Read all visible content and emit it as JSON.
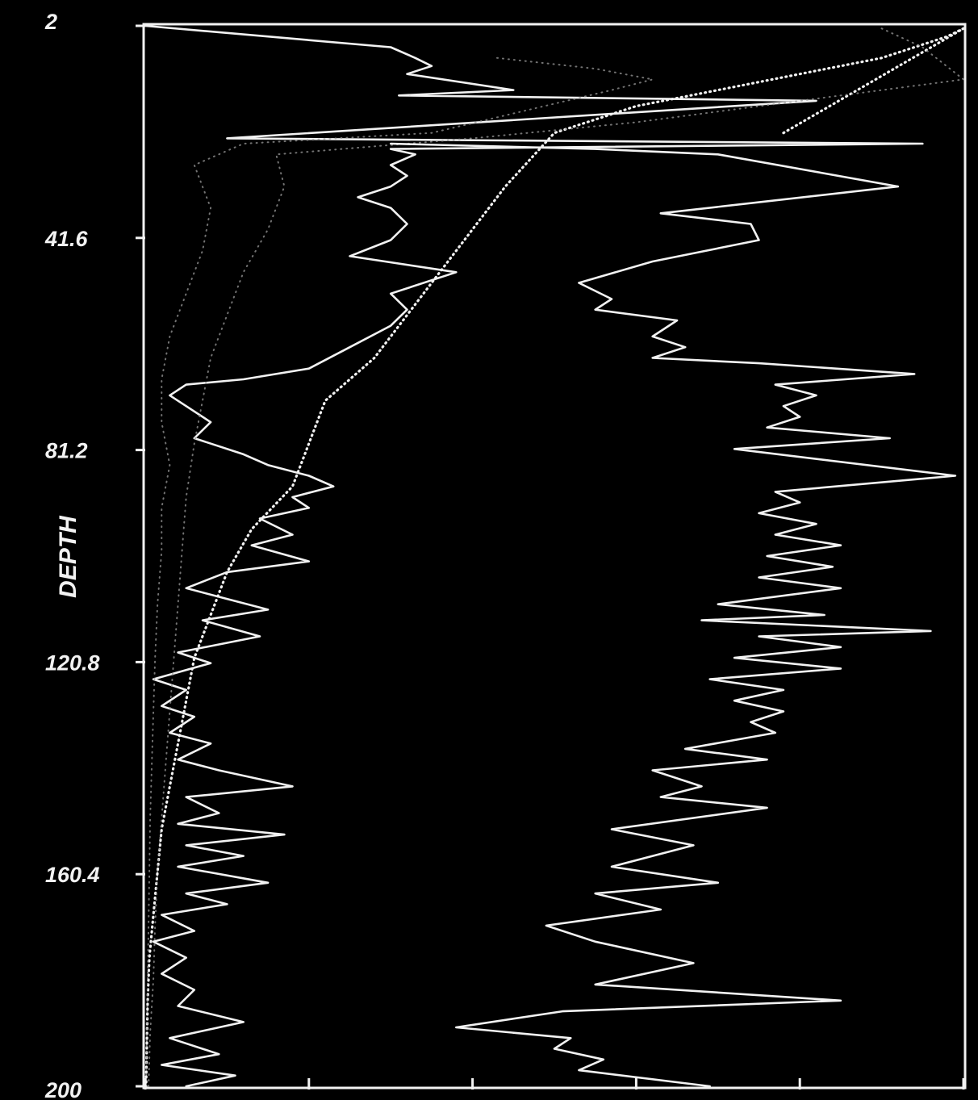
{
  "chart_data": {
    "type": "line",
    "title": "",
    "xlabel": "",
    "ylabel": "DEPTH",
    "ylim": [
      2,
      200
    ],
    "y_inverted": true,
    "xlim": [
      0,
      1
    ],
    "y_ticks": [
      {
        "value": 2,
        "label": "2"
      },
      {
        "value": 41.6,
        "label": "41.6"
      },
      {
        "value": 81.2,
        "label": "81.2"
      },
      {
        "value": 120.8,
        "label": "120.8"
      },
      {
        "value": 160.4,
        "label": "160.4"
      },
      {
        "value": 200,
        "label": "200"
      }
    ],
    "x_tick_values": [
      0,
      0.2,
      0.4,
      0.6,
      0.8,
      1.0
    ],
    "grid": false,
    "legend": "none",
    "colors": {
      "background": "#000000",
      "foreground": "#f2f2f2",
      "faint": "#9a9a9a"
    },
    "series": [
      {
        "style": "solid",
        "points": [
          [
            0.0,
            2
          ],
          [
            0.3,
            6
          ],
          [
            0.33,
            8
          ],
          [
            0.35,
            9.5
          ],
          [
            0.32,
            11
          ],
          [
            0.45,
            14
          ],
          [
            0.31,
            15
          ],
          [
            0.82,
            16
          ],
          [
            0.1,
            23
          ],
          [
            0.95,
            24
          ],
          [
            0.3,
            25
          ],
          [
            0.33,
            26
          ],
          [
            0.3,
            28
          ],
          [
            0.32,
            30
          ],
          [
            0.3,
            32
          ],
          [
            0.26,
            34
          ],
          [
            0.3,
            36
          ],
          [
            0.32,
            39
          ],
          [
            0.3,
            42
          ],
          [
            0.25,
            45
          ],
          [
            0.38,
            48
          ],
          [
            0.3,
            52
          ],
          [
            0.32,
            55
          ],
          [
            0.3,
            58
          ],
          [
            0.25,
            62
          ],
          [
            0.2,
            66
          ],
          [
            0.12,
            68
          ],
          [
            0.05,
            69
          ],
          [
            0.03,
            71
          ],
          [
            0.05,
            73
          ],
          [
            0.08,
            76
          ],
          [
            0.06,
            79
          ],
          [
            0.12,
            82
          ],
          [
            0.15,
            84
          ],
          [
            0.2,
            86
          ],
          [
            0.23,
            88
          ],
          [
            0.18,
            90
          ],
          [
            0.2,
            92
          ],
          [
            0.14,
            94
          ],
          [
            0.18,
            97
          ],
          [
            0.13,
            99
          ],
          [
            0.2,
            102
          ],
          [
            0.1,
            104
          ],
          [
            0.05,
            107
          ],
          [
            0.1,
            109
          ],
          [
            0.15,
            111
          ],
          [
            0.07,
            113
          ],
          [
            0.14,
            116
          ],
          [
            0.04,
            119
          ],
          [
            0.08,
            121
          ],
          [
            0.01,
            124
          ],
          [
            0.05,
            126
          ],
          [
            0.02,
            129
          ],
          [
            0.06,
            131
          ],
          [
            0.03,
            134
          ],
          [
            0.08,
            136
          ],
          [
            0.04,
            139
          ],
          [
            0.09,
            141
          ],
          [
            0.18,
            144
          ],
          [
            0.05,
            146
          ],
          [
            0.09,
            149
          ],
          [
            0.04,
            151
          ],
          [
            0.17,
            153
          ],
          [
            0.05,
            155
          ],
          [
            0.12,
            157
          ],
          [
            0.04,
            159
          ],
          [
            0.15,
            162
          ],
          [
            0.05,
            164
          ],
          [
            0.1,
            166
          ],
          [
            0.02,
            168
          ],
          [
            0.06,
            171
          ],
          [
            0.01,
            173
          ],
          [
            0.05,
            176
          ],
          [
            0.02,
            179
          ],
          [
            0.06,
            182
          ],
          [
            0.04,
            185
          ],
          [
            0.12,
            188
          ],
          [
            0.03,
            191
          ],
          [
            0.09,
            194
          ],
          [
            0.02,
            196
          ],
          [
            0.11,
            198
          ],
          [
            0.05,
            200
          ]
        ]
      },
      {
        "style": "dotted-bright",
        "points": [
          [
            0.78,
            22
          ],
          [
            1.0,
            2.5
          ],
          [
            0.98,
            4
          ],
          [
            0.9,
            8
          ],
          [
            0.7,
            14
          ],
          [
            0.6,
            17
          ],
          [
            0.5,
            22
          ],
          [
            0.44,
            32
          ],
          [
            0.4,
            40
          ],
          [
            0.36,
            48
          ],
          [
            0.32,
            56
          ],
          [
            0.28,
            64
          ],
          [
            0.22,
            72
          ],
          [
            0.2,
            80
          ],
          [
            0.18,
            88
          ],
          [
            0.13,
            96
          ],
          [
            0.1,
            104
          ],
          [
            0.08,
            112
          ],
          [
            0.06,
            120
          ],
          [
            0.05,
            128
          ],
          [
            0.04,
            136
          ],
          [
            0.03,
            144
          ],
          [
            0.02,
            152
          ],
          [
            0.015,
            160
          ],
          [
            0.01,
            168
          ],
          [
            0.005,
            176
          ],
          [
            0.003,
            184
          ],
          [
            0.002,
            192
          ],
          [
            0.001,
            200
          ]
        ]
      },
      {
        "style": "dotted-faint",
        "points": [
          [
            0.9,
            2.5
          ],
          [
            0.95,
            6
          ],
          [
            1.0,
            12
          ],
          [
            0.85,
            15
          ],
          [
            0.6,
            20
          ],
          [
            0.4,
            23
          ],
          [
            0.16,
            26
          ],
          [
            0.17,
            32
          ],
          [
            0.15,
            40
          ],
          [
            0.12,
            48
          ],
          [
            0.1,
            56
          ],
          [
            0.08,
            64
          ],
          [
            0.07,
            72
          ],
          [
            0.06,
            80
          ],
          [
            0.05,
            90
          ],
          [
            0.045,
            100
          ],
          [
            0.04,
            110
          ],
          [
            0.035,
            120
          ],
          [
            0.03,
            130
          ],
          [
            0.025,
            140
          ],
          [
            0.02,
            150
          ],
          [
            0.015,
            160
          ],
          [
            0.012,
            170
          ],
          [
            0.01,
            180
          ],
          [
            0.006,
            190
          ],
          [
            0.004,
            200
          ]
        ]
      },
      {
        "style": "dotted-faint",
        "points": [
          [
            0.43,
            8
          ],
          [
            0.55,
            10
          ],
          [
            0.62,
            12
          ],
          [
            0.57,
            14
          ],
          [
            0.35,
            22
          ],
          [
            0.12,
            24
          ],
          [
            0.06,
            28
          ],
          [
            0.08,
            36
          ],
          [
            0.07,
            44
          ],
          [
            0.05,
            52
          ],
          [
            0.03,
            60
          ],
          [
            0.02,
            68
          ],
          [
            0.02,
            76
          ],
          [
            0.03,
            84
          ],
          [
            0.02,
            92
          ],
          [
            0.02,
            100
          ],
          [
            0.015,
            110
          ],
          [
            0.012,
            120
          ],
          [
            0.01,
            130
          ],
          [
            0.008,
            140
          ],
          [
            0.006,
            150
          ],
          [
            0.005,
            160
          ],
          [
            0.004,
            170
          ],
          [
            0.003,
            180
          ],
          [
            0.002,
            190
          ],
          [
            0.001,
            200
          ]
        ]
      },
      {
        "style": "solid",
        "points": [
          [
            0.3,
            24
          ],
          [
            0.55,
            25
          ],
          [
            0.7,
            26
          ],
          [
            0.92,
            32
          ],
          [
            0.63,
            37
          ],
          [
            0.74,
            39
          ],
          [
            0.75,
            42
          ],
          [
            0.62,
            46
          ],
          [
            0.53,
            50
          ],
          [
            0.57,
            53
          ],
          [
            0.55,
            55
          ],
          [
            0.65,
            57
          ],
          [
            0.62,
            60
          ],
          [
            0.66,
            62
          ],
          [
            0.62,
            64
          ],
          [
            0.75,
            65
          ],
          [
            0.94,
            67
          ],
          [
            0.77,
            69
          ],
          [
            0.82,
            71
          ],
          [
            0.78,
            73
          ],
          [
            0.8,
            75
          ],
          [
            0.76,
            77
          ],
          [
            0.91,
            79
          ],
          [
            0.72,
            81
          ],
          [
            0.99,
            86
          ],
          [
            0.77,
            89
          ],
          [
            0.8,
            91
          ],
          [
            0.75,
            93
          ],
          [
            0.82,
            95
          ],
          [
            0.77,
            97
          ],
          [
            0.85,
            99
          ],
          [
            0.76,
            101
          ],
          [
            0.84,
            103
          ],
          [
            0.75,
            105
          ],
          [
            0.85,
            107
          ],
          [
            0.7,
            110
          ],
          [
            0.83,
            112
          ],
          [
            0.68,
            113
          ],
          [
            0.96,
            115
          ],
          [
            0.75,
            116
          ],
          [
            0.85,
            118
          ],
          [
            0.72,
            120
          ],
          [
            0.85,
            122
          ],
          [
            0.69,
            124
          ],
          [
            0.78,
            126
          ],
          [
            0.72,
            128
          ],
          [
            0.78,
            130
          ],
          [
            0.74,
            132
          ],
          [
            0.77,
            134
          ],
          [
            0.66,
            137
          ],
          [
            0.76,
            139
          ],
          [
            0.62,
            141
          ],
          [
            0.68,
            144
          ],
          [
            0.63,
            146
          ],
          [
            0.76,
            148
          ],
          [
            0.57,
            152
          ],
          [
            0.67,
            155
          ],
          [
            0.57,
            159
          ],
          [
            0.7,
            162
          ],
          [
            0.55,
            164
          ],
          [
            0.63,
            167
          ],
          [
            0.49,
            170
          ],
          [
            0.55,
            173
          ],
          [
            0.67,
            177
          ],
          [
            0.55,
            181
          ],
          [
            0.85,
            184
          ],
          [
            0.51,
            186
          ],
          [
            0.38,
            189
          ],
          [
            0.52,
            191
          ],
          [
            0.5,
            193
          ],
          [
            0.56,
            195
          ],
          [
            0.53,
            197
          ],
          [
            0.69,
            200
          ]
        ]
      }
    ]
  }
}
